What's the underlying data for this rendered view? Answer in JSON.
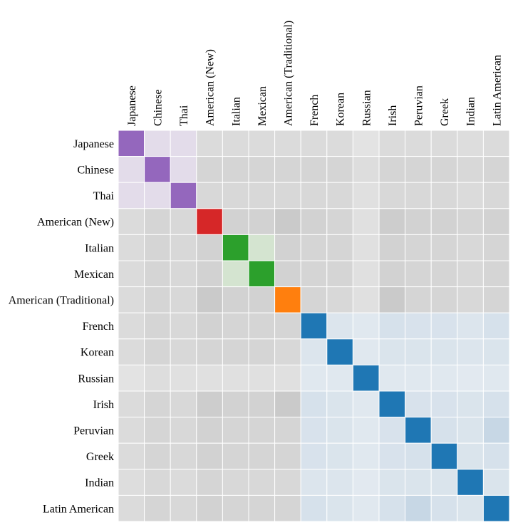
{
  "chart_data": {
    "type": "heatmap",
    "title": "",
    "labels": [
      "Japanese",
      "Chinese",
      "Thai",
      "American (New)",
      "Italian",
      "Mexican",
      "American (Traditional)",
      "French",
      "Korean",
      "Russian",
      "Irish",
      "Peruvian",
      "Greek",
      "Indian",
      "Latin American"
    ],
    "groups": [
      0,
      0,
      0,
      1,
      2,
      2,
      3,
      4,
      4,
      4,
      4,
      4,
      4,
      4,
      4
    ],
    "group_colors": [
      "#9467bd",
      "#d62728",
      "#2ca02c",
      "#ff7f0e",
      "#1f77b4"
    ],
    "light_colors": [
      "#e3dcea",
      "#f2d6d6",
      "#d4e4d0",
      "#f5e2cf",
      "#d5e0ea"
    ],
    "colors": {
      "neutral_dark": "#b4b4b4",
      "neutral_light": "#ebebeb",
      "blue_light": "#e8edf2",
      "blue_dark": "#bfd2e2",
      "grid": "#ffffff"
    },
    "matrix": [
      [
        1.0,
        0.55,
        0.55,
        0.3,
        0.3,
        0.3,
        0.3,
        0.3,
        0.3,
        0.15,
        0.3,
        0.3,
        0.3,
        0.25,
        0.3
      ],
      [
        0.55,
        1.0,
        0.55,
        0.4,
        0.4,
        0.4,
        0.4,
        0.4,
        0.4,
        0.25,
        0.4,
        0.4,
        0.4,
        0.35,
        0.4
      ],
      [
        0.55,
        0.55,
        1.0,
        0.35,
        0.35,
        0.35,
        0.35,
        0.35,
        0.35,
        0.2,
        0.35,
        0.35,
        0.35,
        0.3,
        0.35
      ],
      [
        0.3,
        0.4,
        0.35,
        1.0,
        0.45,
        0.45,
        0.6,
        0.45,
        0.4,
        0.2,
        0.55,
        0.45,
        0.45,
        0.4,
        0.45
      ],
      [
        0.3,
        0.4,
        0.35,
        0.45,
        1.0,
        0.55,
        0.45,
        0.4,
        0.4,
        0.2,
        0.45,
        0.4,
        0.4,
        0.35,
        0.4
      ],
      [
        0.3,
        0.4,
        0.35,
        0.45,
        0.55,
        1.0,
        0.45,
        0.4,
        0.4,
        0.2,
        0.45,
        0.4,
        0.4,
        0.35,
        0.4
      ],
      [
        0.3,
        0.4,
        0.35,
        0.6,
        0.45,
        0.45,
        1.0,
        0.4,
        0.35,
        0.2,
        0.6,
        0.4,
        0.4,
        0.35,
        0.4
      ],
      [
        0.3,
        0.4,
        0.35,
        0.45,
        0.4,
        0.4,
        0.4,
        1.0,
        0.3,
        0.2,
        0.45,
        0.4,
        0.4,
        0.3,
        0.45
      ],
      [
        0.3,
        0.4,
        0.35,
        0.4,
        0.4,
        0.4,
        0.35,
        0.3,
        1.0,
        0.2,
        0.35,
        0.35,
        0.35,
        0.3,
        0.35
      ],
      [
        0.15,
        0.25,
        0.2,
        0.2,
        0.2,
        0.2,
        0.2,
        0.2,
        0.2,
        1.0,
        0.2,
        0.2,
        0.2,
        0.15,
        0.2
      ],
      [
        0.3,
        0.4,
        0.35,
        0.55,
        0.45,
        0.45,
        0.6,
        0.45,
        0.35,
        0.2,
        1.0,
        0.4,
        0.4,
        0.35,
        0.45
      ],
      [
        0.3,
        0.4,
        0.35,
        0.45,
        0.4,
        0.4,
        0.4,
        0.4,
        0.35,
        0.2,
        0.4,
        1.0,
        0.45,
        0.35,
        0.8
      ],
      [
        0.3,
        0.4,
        0.35,
        0.45,
        0.4,
        0.4,
        0.4,
        0.4,
        0.35,
        0.2,
        0.4,
        0.45,
        1.0,
        0.35,
        0.45
      ],
      [
        0.25,
        0.35,
        0.3,
        0.4,
        0.35,
        0.35,
        0.35,
        0.3,
        0.3,
        0.15,
        0.35,
        0.35,
        0.35,
        1.0,
        0.35
      ],
      [
        0.3,
        0.4,
        0.35,
        0.45,
        0.4,
        0.4,
        0.4,
        0.45,
        0.35,
        0.2,
        0.45,
        0.8,
        0.45,
        0.35,
        1.0
      ]
    ]
  }
}
